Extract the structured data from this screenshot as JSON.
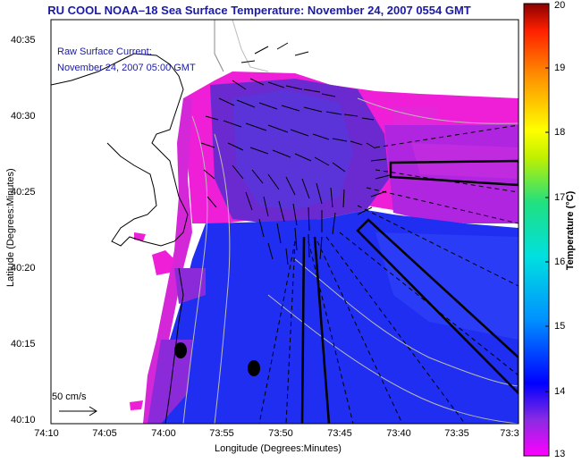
{
  "title": "RU COOL  NOAA–18  Sea Surface Temperature:  November 24, 2007 0554 GMT",
  "legend": {
    "line1": "Raw Surface Current:",
    "line2": "November 24, 2007 05:00 GMT"
  },
  "scale": {
    "label": "50 cm/s"
  },
  "axes": {
    "xlabel": "Longitude (Degrees:Minutes)",
    "ylabel": "Latitude (Degrees:Minutes)",
    "xticks": [
      "74:10",
      "74:05",
      "74:00",
      "73:55",
      "73:50",
      "73:45",
      "73:40",
      "73:35",
      "73:3"
    ],
    "yticks": [
      "40:35",
      "40:30",
      "40:25",
      "40:20",
      "40:15",
      "40:10"
    ]
  },
  "colorbar": {
    "label": "Temperature (°C)",
    "ticks": [
      "20",
      "19",
      "18",
      "17",
      "16",
      "15",
      "14",
      "13"
    ],
    "range": [
      13,
      20
    ]
  },
  "colors": {
    "title": "#1a1aa8",
    "warm": "#ee1fd6",
    "mid": "#6a2ad0",
    "cool": "#1f2ef0"
  }
}
